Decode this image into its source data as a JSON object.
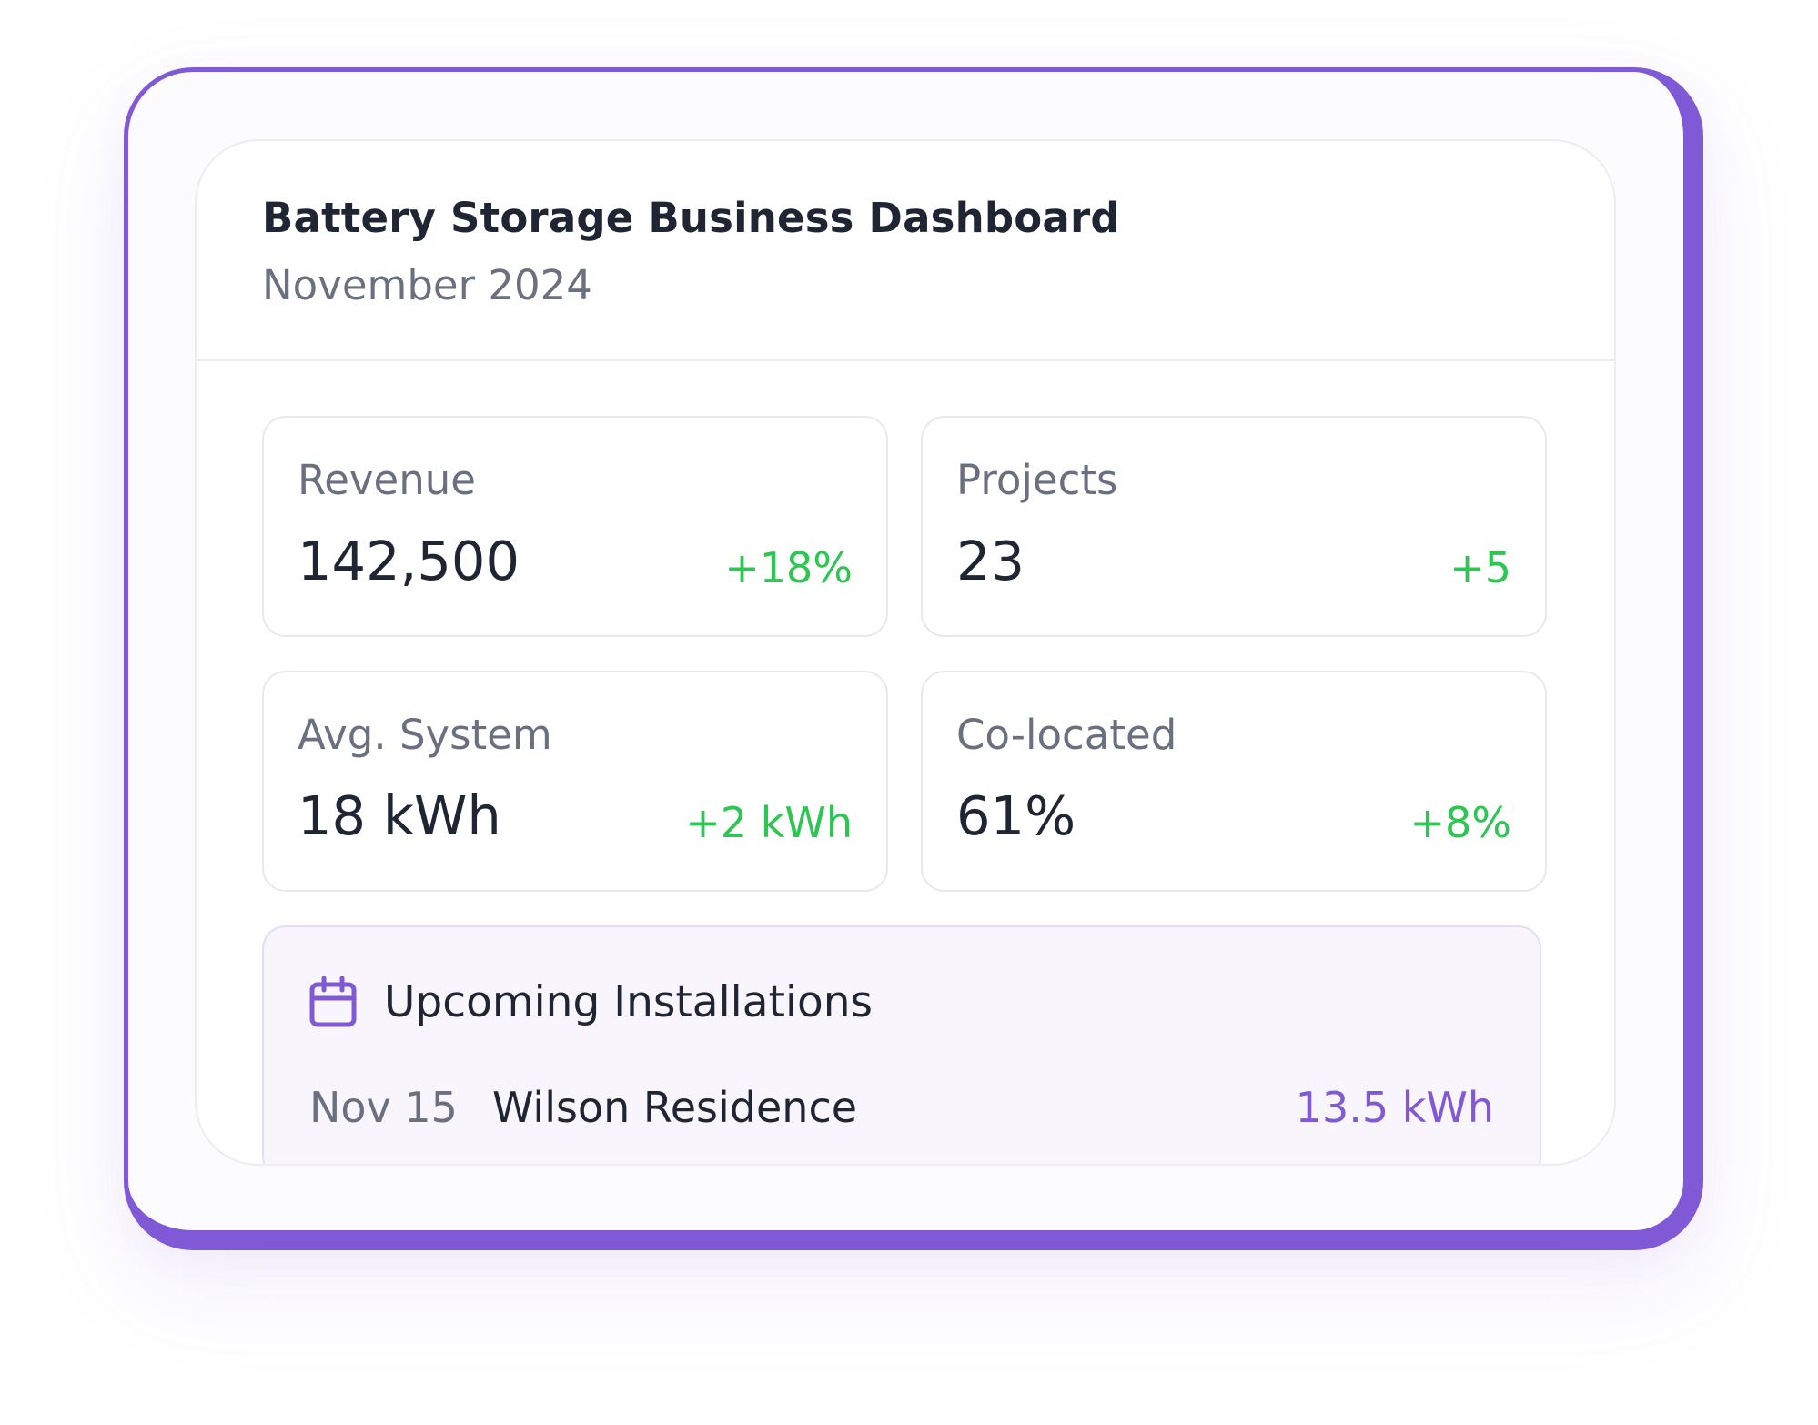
{
  "dashboard": {
    "title": "Battery Storage Business Dashboard",
    "subtitle": "November 2024"
  },
  "stats": [
    {
      "label": "Revenue",
      "value": "142,500",
      "delta": "+18%"
    },
    {
      "label": "Projects",
      "value": "23",
      "delta": "+5"
    },
    {
      "label": "Avg. System",
      "value": "18 kWh",
      "delta": "+2 kWh"
    },
    {
      "label": "Co-located",
      "value": "61%",
      "delta": "+8%"
    }
  ],
  "installations": {
    "title": "Upcoming Installations",
    "icon": "calendar-icon",
    "items": [
      {
        "date": "Nov 15",
        "name": "Wilson Residence",
        "capacity": "13.5 kWh"
      }
    ]
  },
  "colors": {
    "accent": "#8059d6",
    "positive": "#2dc653",
    "text_primary": "#1f2533",
    "text_secondary": "#6b7080"
  }
}
